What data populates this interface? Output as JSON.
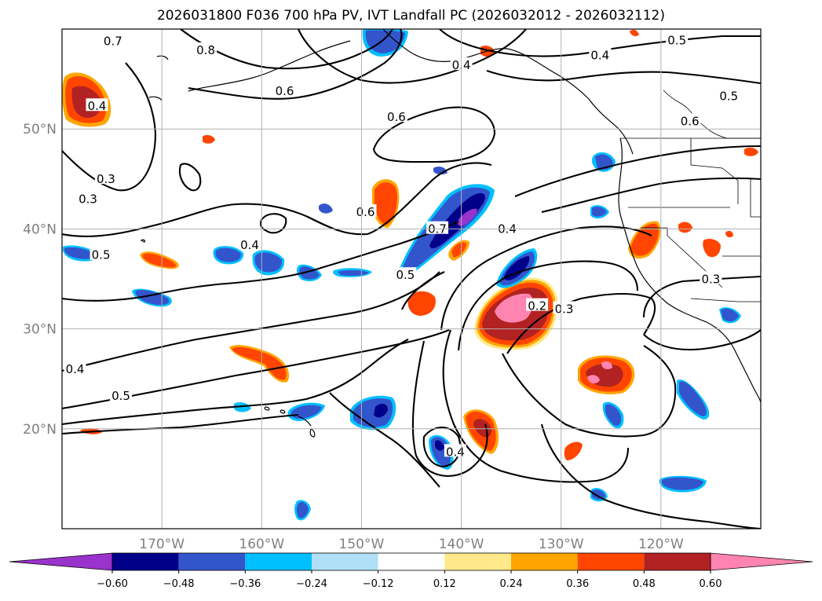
{
  "title": "2026031800 F036 700 hPa PV, IVT Landfall PC (2026032012 - 2026032112)",
  "map": {
    "lon_range": [
      -180,
      -110
    ],
    "lat_range": [
      10,
      60
    ],
    "lat_ticks": [
      {
        "value": 50,
        "label": "50°N"
      },
      {
        "value": 40,
        "label": "40°N"
      },
      {
        "value": 30,
        "label": "30°N"
      },
      {
        "value": 20,
        "label": "20°N"
      }
    ],
    "lon_ticks": [
      {
        "value": -170,
        "label": "170°W"
      },
      {
        "value": -160,
        "label": "160°W"
      },
      {
        "value": -150,
        "label": "150°W"
      },
      {
        "value": -140,
        "label": "140°W"
      },
      {
        "value": -130,
        "label": "130°W"
      },
      {
        "value": -120,
        "label": "120°W"
      }
    ],
    "contour_labels": [
      {
        "text": "0.7",
        "lon": -174.9,
        "lat": 58.7
      },
      {
        "text": "0.8",
        "lon": -165.6,
        "lat": 57.8
      },
      {
        "text": "0.4",
        "lon": -140.0,
        "lat": 56.3
      },
      {
        "text": "0.4",
        "lon": -126.1,
        "lat": 57.3
      },
      {
        "text": "0.5",
        "lon": -118.4,
        "lat": 58.8
      },
      {
        "text": "0.6",
        "lon": -157.7,
        "lat": 53.7
      },
      {
        "text": "0.6",
        "lon": -146.5,
        "lat": 51.1
      },
      {
        "text": "0.5",
        "lon": -113.2,
        "lat": 53.2
      },
      {
        "text": "0.4",
        "lon": -176.5,
        "lat": 52.2
      },
      {
        "text": "0.6",
        "lon": -117.1,
        "lat": 50.7
      },
      {
        "text": "0.3",
        "lon": -175.6,
        "lat": 44.9
      },
      {
        "text": "0.3",
        "lon": -177.4,
        "lat": 42.9
      },
      {
        "text": "0.6",
        "lon": -149.6,
        "lat": 41.6
      },
      {
        "text": "0.7",
        "lon": -142.4,
        "lat": 39.9
      },
      {
        "text": "0.4",
        "lon": -161.2,
        "lat": 38.3
      },
      {
        "text": "0.5",
        "lon": -176.1,
        "lat": 37.3
      },
      {
        "text": "0.5",
        "lon": -145.6,
        "lat": 35.3
      },
      {
        "text": "0.4",
        "lon": -135.4,
        "lat": 39.9
      },
      {
        "text": "0.2",
        "lon": -132.4,
        "lat": 32.2
      },
      {
        "text": "0.3",
        "lon": -129.7,
        "lat": 31.9
      },
      {
        "text": "0.3",
        "lon": -115.0,
        "lat": 34.9
      },
      {
        "text": "0.4",
        "lon": -178.7,
        "lat": 25.9
      },
      {
        "text": "0.5",
        "lon": -174.1,
        "lat": 23.2
      },
      {
        "text": "0.4",
        "lon": -140.6,
        "lat": 17.6
      }
    ],
    "colorbar": {
      "boundaries": [
        -0.6,
        -0.48,
        -0.36,
        -0.24,
        -0.12,
        0.12,
        0.24,
        0.36,
        0.48,
        0.6
      ],
      "labels": [
        "−0.60",
        "−0.48",
        "−0.36",
        "−0.24",
        "−0.12",
        "0.12",
        "0.24",
        "0.36",
        "0.48",
        "0.60"
      ],
      "colors": [
        "#9a33cc",
        "#00008b",
        "#3355cc",
        "#00bfff",
        "#b0e0f8",
        "#ffffff",
        "#ffe98a",
        "#ffa500",
        "#ff4500",
        "#b22222",
        "#ff85b0"
      ],
      "extend": "both"
    },
    "colors": {
      "land": "#000000",
      "contour": "#000000",
      "grid": "#b0b0b0"
    }
  }
}
